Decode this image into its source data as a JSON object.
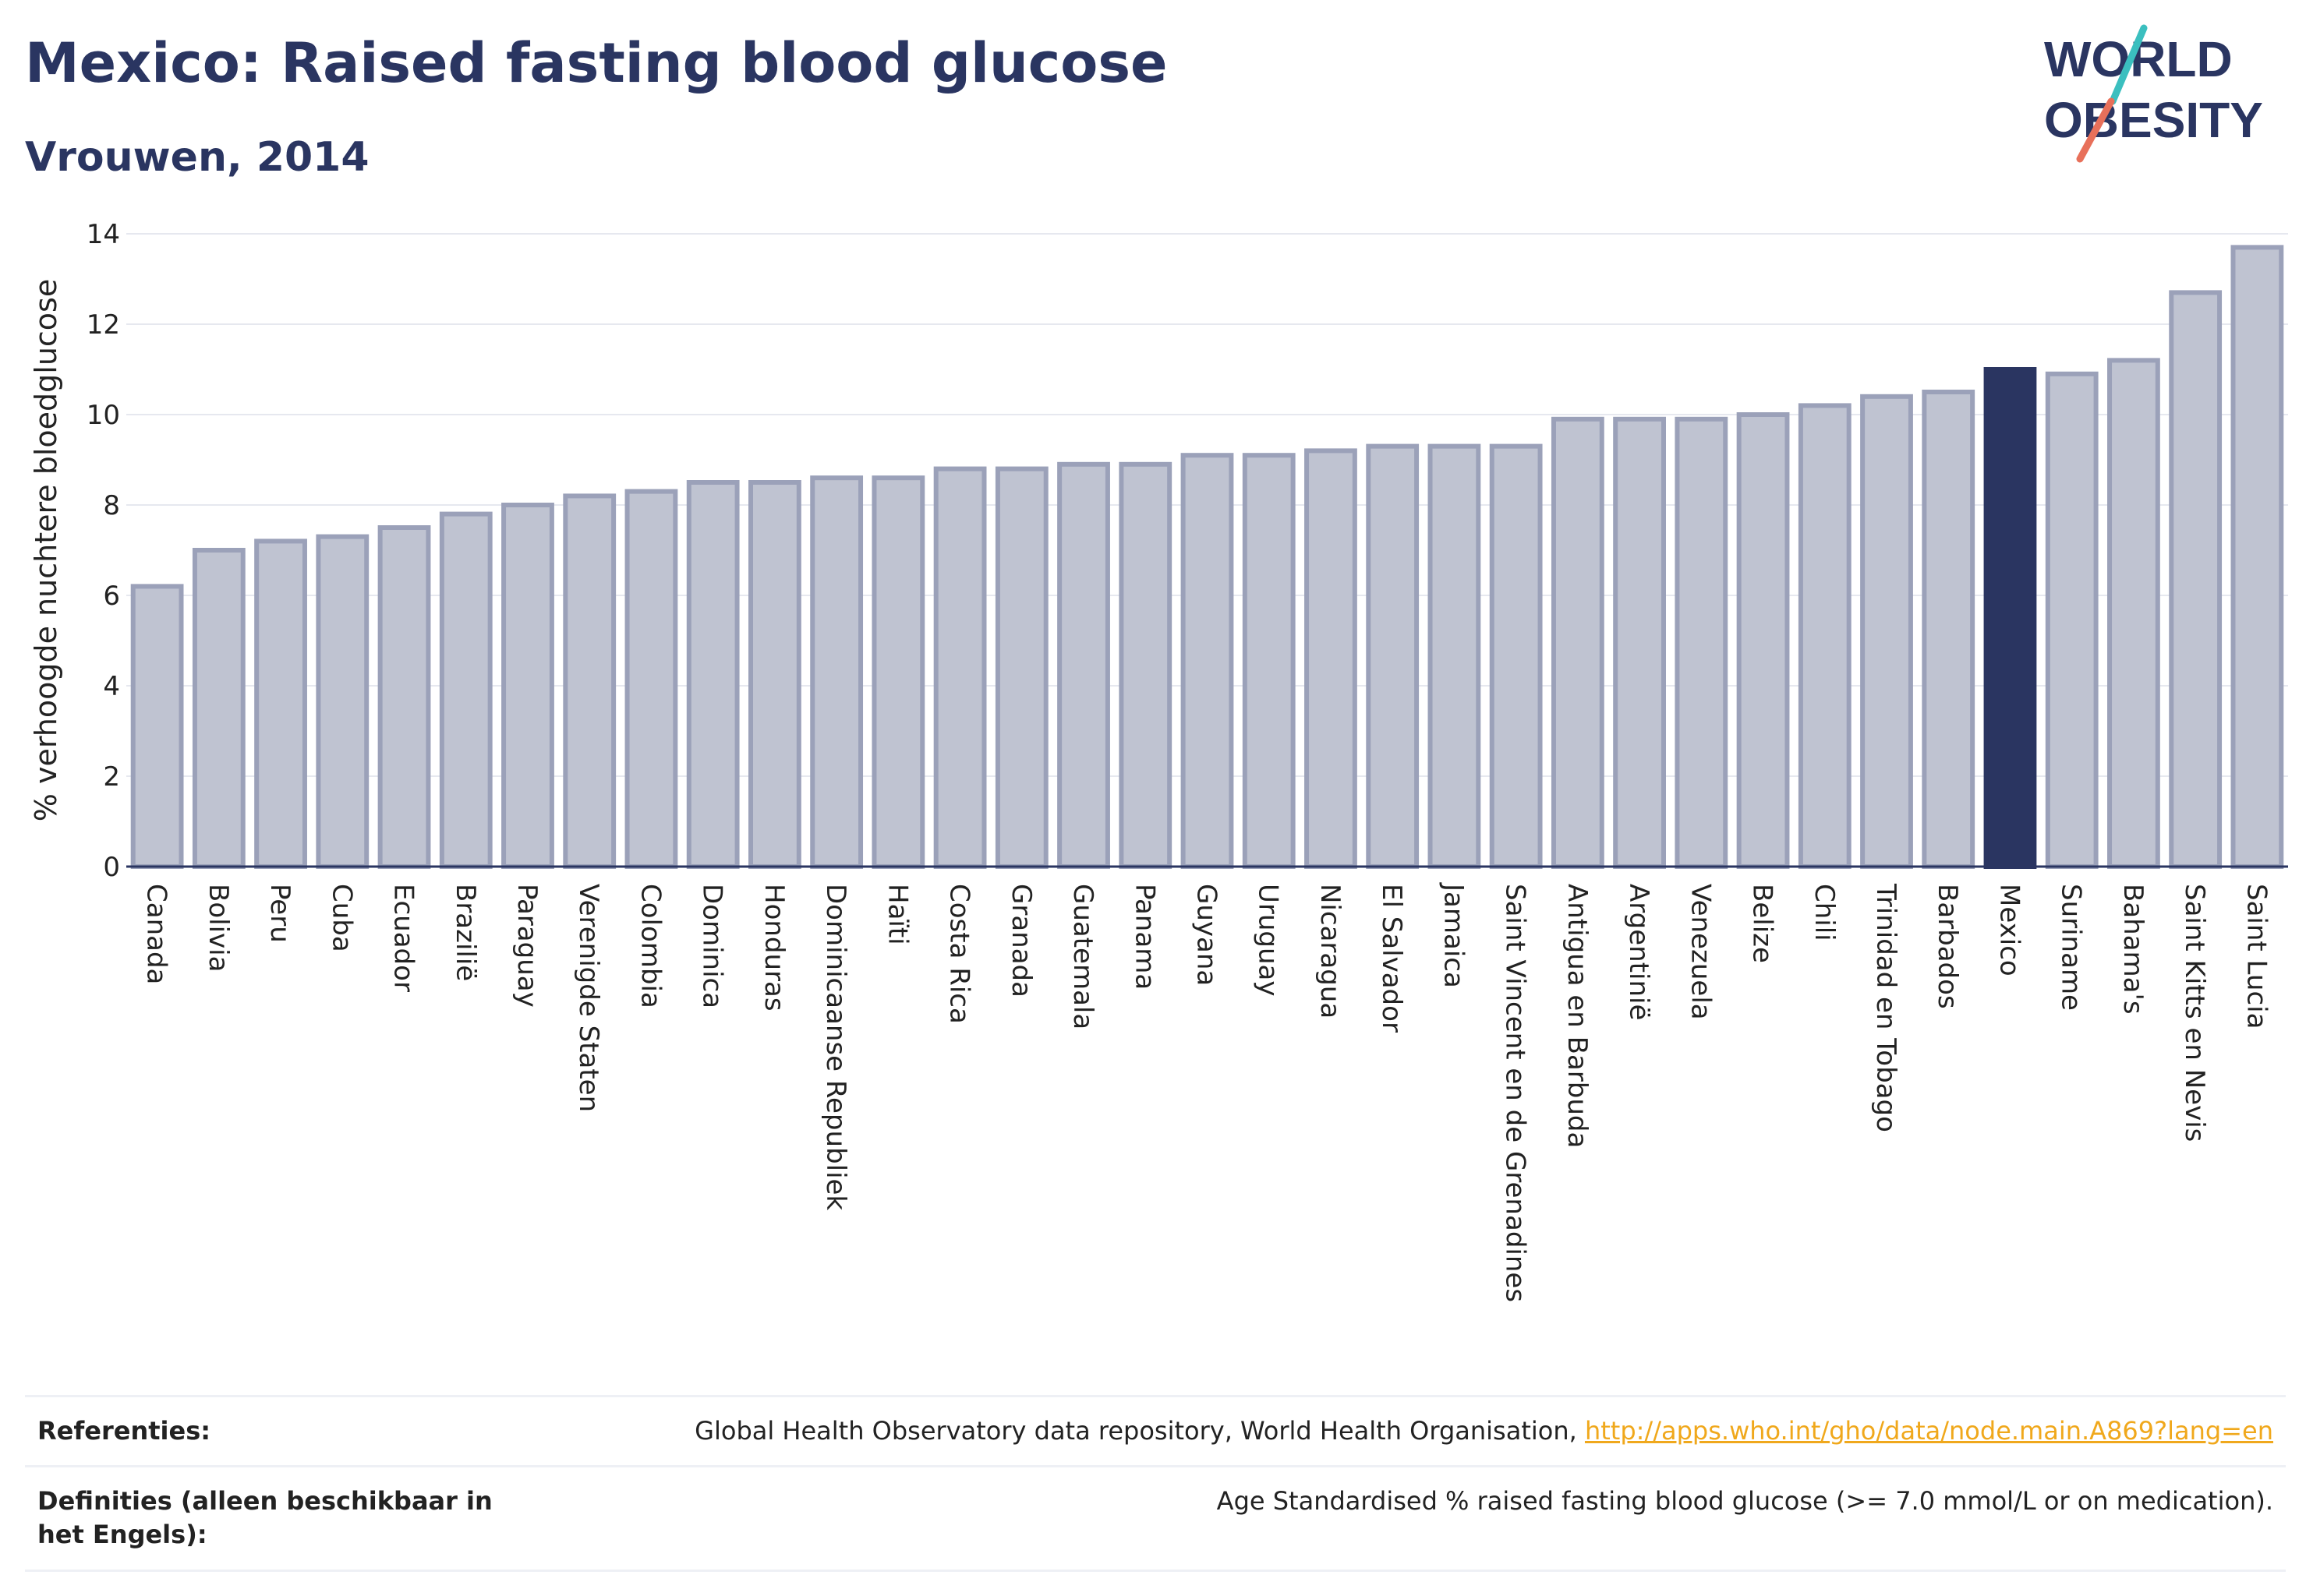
{
  "header": {
    "title": "Mexico: Raised fasting blood glucose",
    "subtitle": "Vrouwen, 2014"
  },
  "logo": {
    "line1": "WORLD",
    "line2": "OBESITY",
    "slash_colors": [
      "#3bbfbf",
      "#e8705a"
    ]
  },
  "colors": {
    "bar": "#bfc3d1",
    "bar_border": "#9ba1b9",
    "highlight": "#2a3561",
    "grid": "#e6e8ef",
    "axis": "#2a3561"
  },
  "chart_data": {
    "type": "bar",
    "title": "Mexico: Raised fasting blood glucose",
    "subtitle": "Vrouwen, 2014",
    "xlabel": "",
    "ylabel": "% verhoogde nuchtere bloedglucose",
    "ylim": [
      0,
      14
    ],
    "yticks": [
      0,
      2,
      4,
      6,
      8,
      10,
      12,
      14
    ],
    "grid": true,
    "highlight": "Mexico",
    "categories": [
      "Canada",
      "Bolivia",
      "Peru",
      "Cuba",
      "Ecuador",
      "Brazilië",
      "Paraguay",
      "Verenigde Staten",
      "Colombia",
      "Dominica",
      "Honduras",
      "Dominicaanse Republiek",
      "Haïti",
      "Costa Rica",
      "Granada",
      "Guatemala",
      "Panama",
      "Guyana",
      "Uruguay",
      "Nicaragua",
      "El Salvador",
      "Jamaica",
      "Saint Vincent en de Grenadines",
      "Antigua en Barbuda",
      "Argentinië",
      "Venezuela",
      "Belize",
      "Chili",
      "Trinidad en Tobago",
      "Barbados",
      "Mexico",
      "Suriname",
      "Bahama's",
      "Saint Kitts en Nevis",
      "Saint Lucia"
    ],
    "values": [
      6.2,
      7.0,
      7.2,
      7.3,
      7.5,
      7.8,
      8.0,
      8.2,
      8.3,
      8.5,
      8.5,
      8.6,
      8.6,
      8.8,
      8.8,
      8.9,
      8.9,
      9.1,
      9.1,
      9.2,
      9.3,
      9.3,
      9.3,
      9.9,
      9.9,
      9.9,
      10.0,
      10.2,
      10.4,
      10.5,
      11.0,
      10.9,
      11.2,
      12.7,
      13.7
    ]
  },
  "references": {
    "ref_label": "Referenties:",
    "ref_text": "Global Health Observatory data repository, World Health Organisation, ",
    "ref_link": "http://apps.who.int/gho/data/node.main.A869?lang=en",
    "def_label": "Definities (alleen beschikbaar in het Engels):",
    "def_text": "Age Standardised % raised fasting blood glucose (>= 7.0 mmol/L or on medication)."
  }
}
